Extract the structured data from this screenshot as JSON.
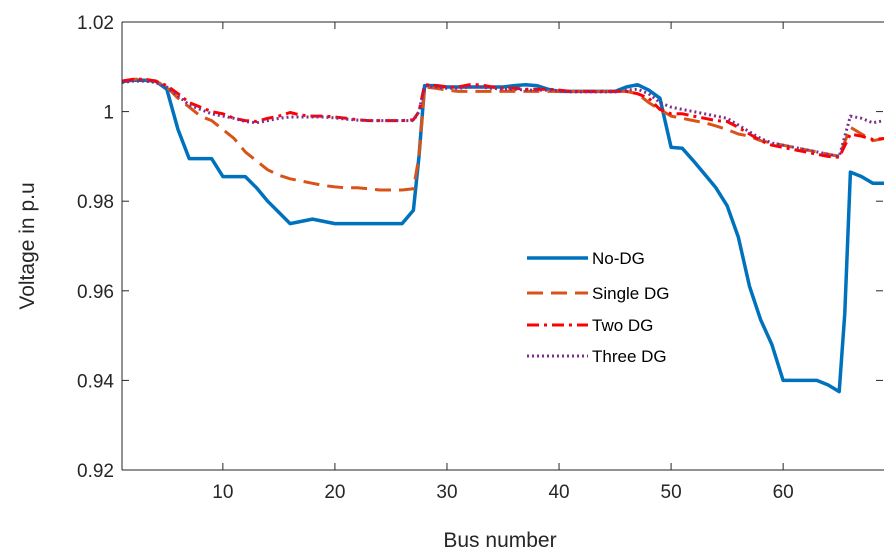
{
  "chart_data": {
    "type": "line",
    "title": "",
    "xlabel": "Bus number",
    "ylabel": "Voltage in p.u",
    "xlim": [
      1,
      69
    ],
    "ylim": [
      0.92,
      1.02
    ],
    "x_ticks": [
      10,
      20,
      30,
      40,
      50,
      60
    ],
    "x_tick_labels": [
      "10",
      "20",
      "30",
      "40",
      "50",
      "60"
    ],
    "y_ticks": [
      0.92,
      0.94,
      0.96,
      0.98,
      1.0,
      1.02
    ],
    "y_tick_labels": [
      "0.92",
      "0.94",
      "0.96",
      "0.98",
      "1",
      "1.02"
    ],
    "grid": false,
    "legend_position": "center-right",
    "series": [
      {
        "name": "No-DG",
        "color": "#0072bd",
        "style": "solid",
        "x": [
          1,
          2,
          3,
          4,
          5,
          6,
          7,
          8,
          9,
          10,
          11,
          12,
          13,
          14,
          15,
          16,
          17,
          18,
          19,
          20,
          21,
          22,
          23,
          24,
          25,
          26,
          27,
          27.5,
          28,
          29,
          30,
          31,
          32,
          33,
          34,
          35,
          36,
          37,
          38,
          39,
          40,
          41,
          42,
          43,
          44,
          45,
          46,
          47,
          48,
          49,
          50,
          51,
          52,
          53,
          54,
          55,
          56,
          57,
          58,
          59,
          60,
          61,
          62,
          63,
          64,
          65,
          65.5,
          66,
          67,
          68,
          69
        ],
        "values": [
          1.0067,
          1.007,
          1.007,
          1.0068,
          1.005,
          0.996,
          0.9895,
          0.9895,
          0.9895,
          0.9855,
          0.9855,
          0.9855,
          0.983,
          0.98,
          0.9775,
          0.975,
          0.9755,
          0.976,
          0.9755,
          0.975,
          0.975,
          0.975,
          0.975,
          0.975,
          0.975,
          0.975,
          0.978,
          0.99,
          1.0058,
          1.0058,
          1.0055,
          1.0055,
          1.0055,
          1.0055,
          1.0055,
          1.0055,
          1.0058,
          1.006,
          1.0058,
          1.005,
          1.0045,
          1.0045,
          1.0045,
          1.0045,
          1.0045,
          1.0045,
          1.0055,
          1.006,
          1.0048,
          1.003,
          0.992,
          0.9918,
          0.989,
          0.986,
          0.983,
          0.979,
          0.972,
          0.961,
          0.9535,
          0.948,
          0.94,
          0.94,
          0.94,
          0.94,
          0.939,
          0.9375,
          0.955,
          0.9865,
          0.9855,
          0.984,
          0.984
        ]
      },
      {
        "name": "Single DG",
        "color": "#d95319",
        "style": "dashed",
        "x": [
          1,
          2,
          3,
          4,
          5,
          6,
          7,
          8,
          9,
          10,
          11,
          12,
          13,
          14,
          15,
          16,
          17,
          18,
          19,
          20,
          21,
          22,
          23,
          24,
          25,
          26,
          27,
          27.5,
          28,
          29,
          30,
          31,
          32,
          33,
          34,
          35,
          36,
          37,
          38,
          39,
          40,
          41,
          42,
          43,
          44,
          45,
          46,
          47,
          48,
          49,
          50,
          51,
          52,
          53,
          54,
          55,
          56,
          57,
          58,
          59,
          60,
          61,
          62,
          63,
          64,
          65,
          66,
          67,
          68,
          69
        ],
        "values": [
          1.0068,
          1.0072,
          1.0072,
          1.0068,
          1.0055,
          1.003,
          1.001,
          0.999,
          0.998,
          0.996,
          0.994,
          0.991,
          0.989,
          0.987,
          0.9858,
          0.985,
          0.9845,
          0.984,
          0.9835,
          0.9832,
          0.983,
          0.983,
          0.9828,
          0.9825,
          0.9825,
          0.9825,
          0.9828,
          0.99,
          1.0055,
          1.0052,
          1.0048,
          1.0045,
          1.0045,
          1.0045,
          1.0045,
          1.0045,
          1.0045,
          1.0045,
          1.0045,
          1.0045,
          1.0045,
          1.0045,
          1.0045,
          1.0045,
          1.0045,
          1.0045,
          1.0045,
          1.004,
          1.002,
          1.0005,
          0.999,
          0.9985,
          0.998,
          0.9975,
          0.9968,
          0.996,
          0.995,
          0.9945,
          0.9935,
          0.993,
          0.9925,
          0.992,
          0.9915,
          0.991,
          0.9905,
          0.99,
          0.9965,
          0.995,
          0.9935,
          0.994
        ]
      },
      {
        "name": "Two DG",
        "color": "#ff0000",
        "style": "dashdot",
        "x": [
          1,
          2,
          3,
          4,
          5,
          6,
          7,
          8,
          9,
          10,
          11,
          12,
          13,
          14,
          15,
          16,
          17,
          18,
          19,
          20,
          21,
          22,
          23,
          24,
          25,
          26,
          27,
          27.5,
          28,
          29,
          30,
          31,
          32,
          33,
          34,
          35,
          36,
          37,
          38,
          39,
          40,
          41,
          42,
          43,
          44,
          45,
          46,
          47,
          48,
          49,
          50,
          51,
          52,
          53,
          54,
          55,
          56,
          57,
          58,
          59,
          60,
          61,
          62,
          63,
          64,
          65,
          66,
          67,
          68,
          69
        ],
        "values": [
          1.0068,
          1.0072,
          1.0072,
          1.0068,
          1.0058,
          1.004,
          1.002,
          1.001,
          1.0,
          0.9995,
          0.9985,
          0.998,
          0.9978,
          0.9985,
          0.999,
          0.9998,
          0.9992,
          0.999,
          0.999,
          0.9988,
          0.9985,
          0.9982,
          0.998,
          0.998,
          0.998,
          0.998,
          0.9982,
          1.0,
          1.006,
          1.0058,
          1.0055,
          1.0055,
          1.006,
          1.006,
          1.0055,
          1.0052,
          1.0052,
          1.005,
          1.005,
          1.005,
          1.0048,
          1.0045,
          1.0045,
          1.0045,
          1.0045,
          1.0045,
          1.0045,
          1.004,
          1.003,
          1.0005,
          0.9995,
          0.9995,
          0.999,
          0.9985,
          0.998,
          0.9978,
          0.9965,
          0.995,
          0.9935,
          0.9925,
          0.992,
          0.9915,
          0.991,
          0.9905,
          0.99,
          0.9898,
          0.995,
          0.9945,
          0.9938,
          0.994
        ]
      },
      {
        "name": "Three DG",
        "color": "#7e2f8e",
        "style": "dotted",
        "x": [
          1,
          2,
          3,
          4,
          5,
          6,
          7,
          8,
          9,
          10,
          11,
          12,
          13,
          14,
          15,
          16,
          17,
          18,
          19,
          20,
          21,
          22,
          23,
          24,
          25,
          26,
          27,
          27.5,
          28,
          29,
          30,
          31,
          32,
          33,
          34,
          35,
          36,
          37,
          38,
          39,
          40,
          41,
          42,
          43,
          44,
          45,
          46,
          47,
          48,
          49,
          50,
          51,
          52,
          53,
          54,
          55,
          56,
          57,
          58,
          59,
          60,
          61,
          62,
          63,
          64,
          65,
          66,
          67,
          68,
          69
        ],
        "values": [
          1.0065,
          1.0068,
          1.0068,
          1.0065,
          1.0055,
          1.0035,
          1.0015,
          1.0005,
          0.9995,
          0.999,
          0.9985,
          0.9978,
          0.9975,
          0.998,
          0.9985,
          0.9988,
          0.9988,
          0.9988,
          0.9988,
          0.9986,
          0.9983,
          0.9981,
          0.998,
          0.998,
          0.998,
          0.998,
          0.998,
          1.0,
          1.0058,
          1.0055,
          1.0052,
          1.0052,
          1.0055,
          1.0055,
          1.0052,
          1.005,
          1.005,
          1.0048,
          1.0048,
          1.0048,
          1.0046,
          1.0044,
          1.0044,
          1.0044,
          1.0044,
          1.0044,
          1.0048,
          1.005,
          1.004,
          1.002,
          1.001,
          1.0005,
          1.0,
          0.9995,
          0.999,
          0.9985,
          0.997,
          0.9955,
          0.994,
          0.993,
          0.9925,
          0.992,
          0.9915,
          0.991,
          0.9905,
          0.99,
          0.999,
          0.9985,
          0.9975,
          0.998
        ]
      }
    ]
  }
}
